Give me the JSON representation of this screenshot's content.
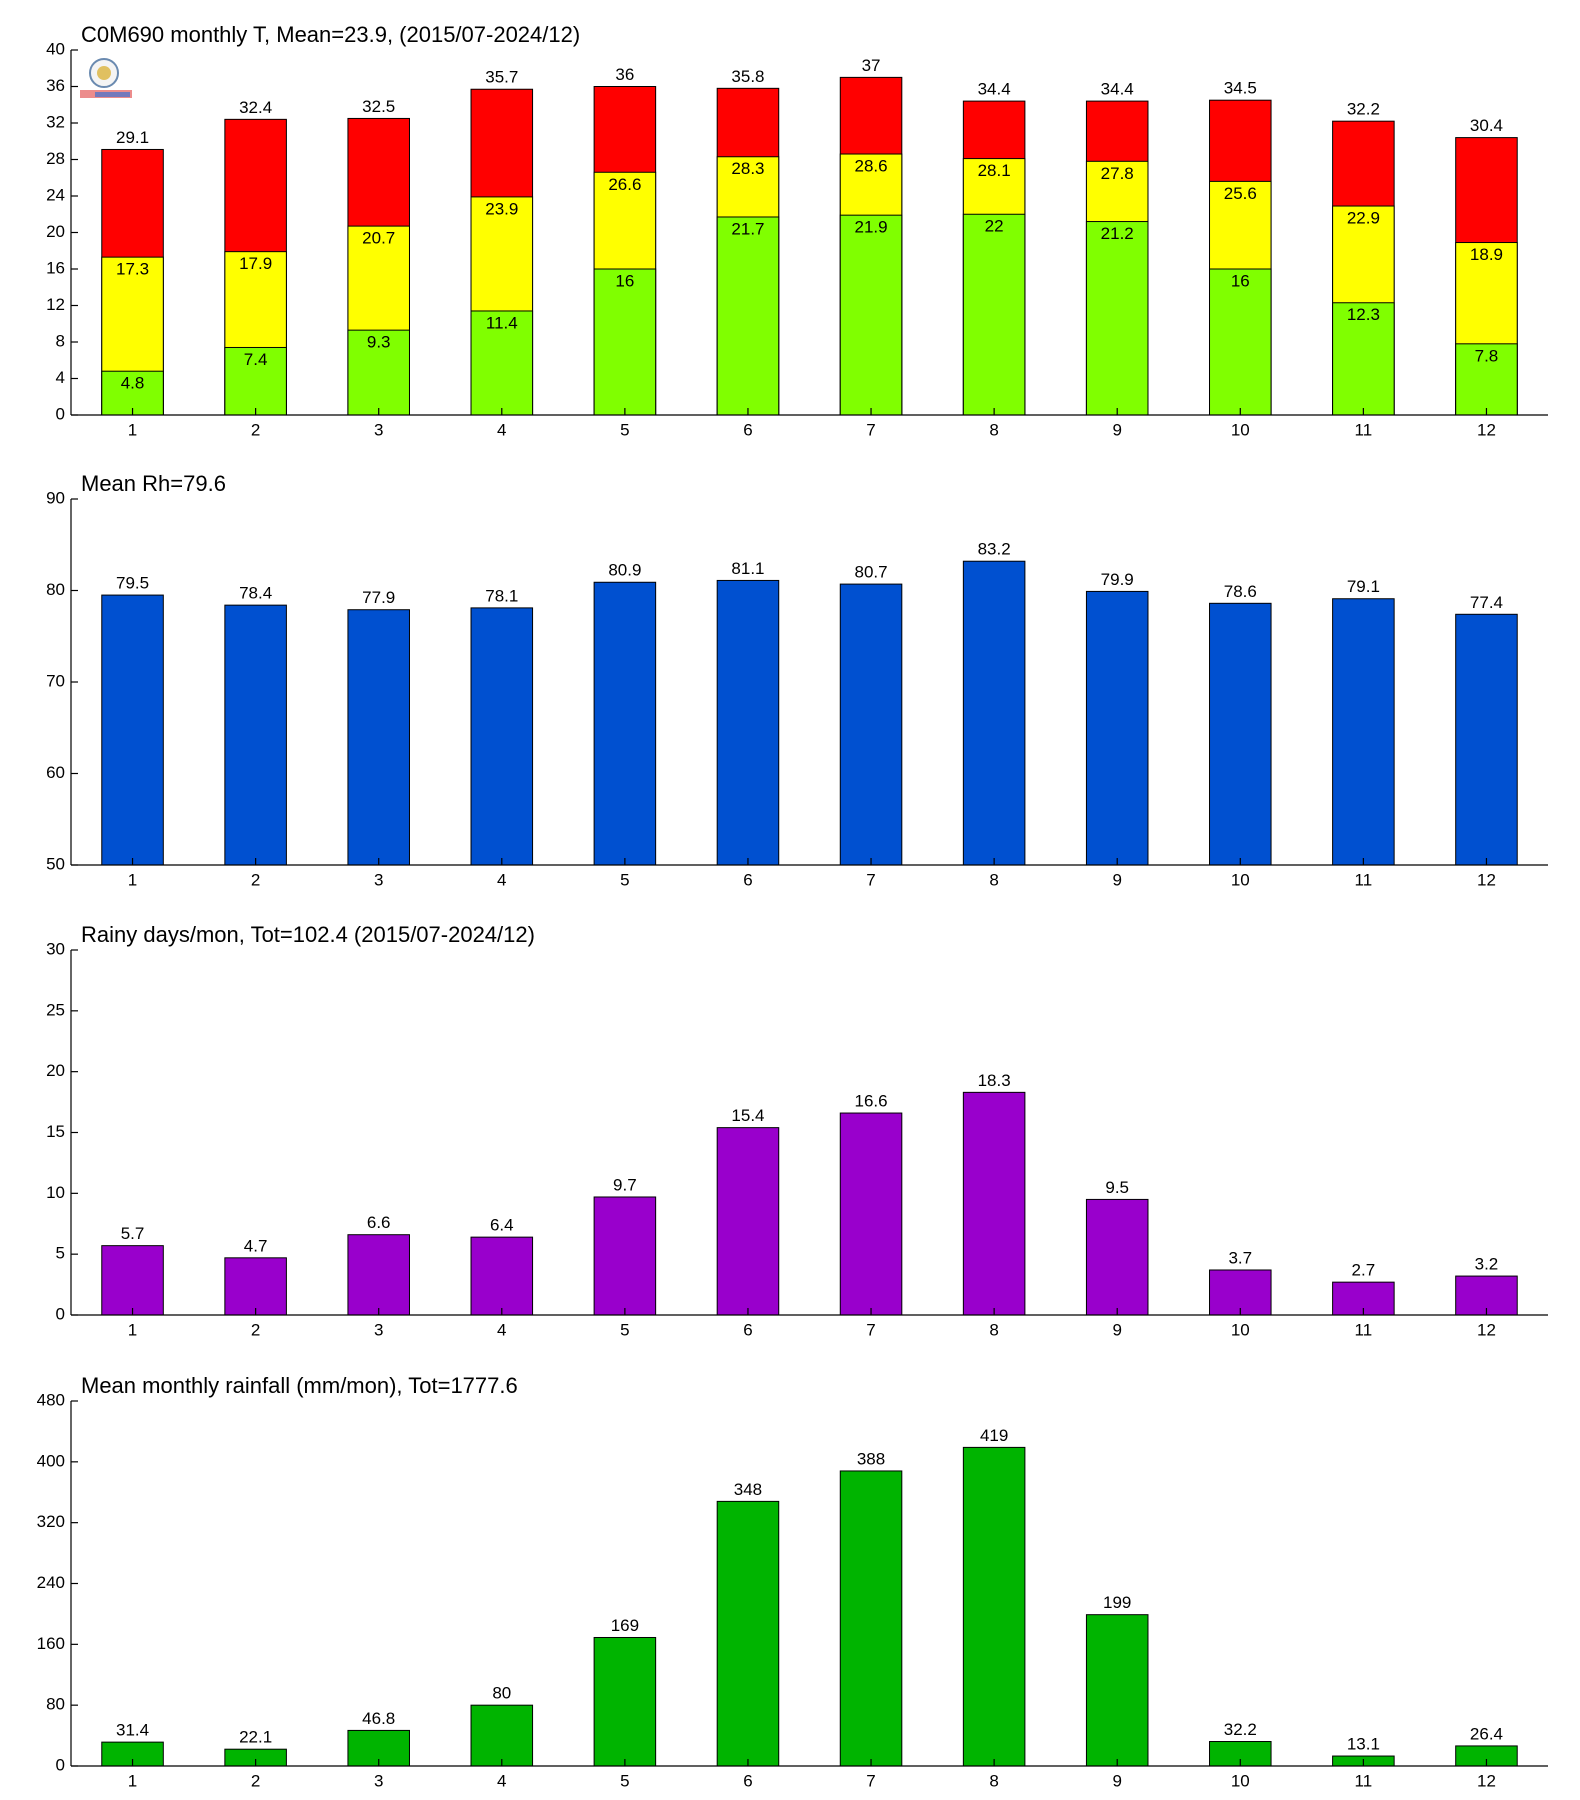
{
  "chart_data": [
    {
      "type": "bar",
      "barmode": "overlay",
      "title": "C0M690 monthly T, Mean=23.9, (2015/07-2024/12)",
      "categories": [
        "1",
        "2",
        "3",
        "4",
        "5",
        "6",
        "7",
        "8",
        "9",
        "10",
        "11",
        "12"
      ],
      "series": [
        {
          "color": "#ff0000",
          "values": [
            29.1,
            32.4,
            32.5,
            35.7,
            36,
            35.8,
            37,
            34.4,
            34.4,
            34.5,
            32.2,
            30.4
          ]
        },
        {
          "color": "#ffff00",
          "values": [
            17.3,
            17.9,
            20.7,
            23.9,
            26.6,
            28.3,
            28.6,
            28.1,
            27.8,
            25.6,
            22.9,
            18.9
          ]
        },
        {
          "color": "#80ff00",
          "values": [
            4.8,
            7.4,
            9.3,
            11.4,
            16,
            21.7,
            21.9,
            22,
            21.2,
            16,
            12.3,
            7.8
          ]
        }
      ],
      "ylim": [
        0,
        40
      ],
      "yticks": [
        0,
        4,
        8,
        12,
        16,
        20,
        24,
        28,
        32,
        36,
        40
      ]
    },
    {
      "type": "bar",
      "title": "Mean Rh=79.6",
      "categories": [
        "1",
        "2",
        "3",
        "4",
        "5",
        "6",
        "7",
        "8",
        "9",
        "10",
        "11",
        "12"
      ],
      "values": [
        79.5,
        78.4,
        77.9,
        78.1,
        80.9,
        81.1,
        80.7,
        83.2,
        79.9,
        78.6,
        79.1,
        77.4
      ],
      "color": "#0050d0",
      "ylim": [
        50,
        90
      ],
      "yticks": [
        50,
        60,
        70,
        80,
        90
      ]
    },
    {
      "type": "bar",
      "title": "Rainy days/mon, Tot=102.4 (2015/07-2024/12)",
      "categories": [
        "1",
        "2",
        "3",
        "4",
        "5",
        "6",
        "7",
        "8",
        "9",
        "10",
        "11",
        "12"
      ],
      "values": [
        5.7,
        4.7,
        6.6,
        6.4,
        9.7,
        15.4,
        16.6,
        18.3,
        9.5,
        3.7,
        2.7,
        3.2
      ],
      "color": "#9900cc",
      "ylim": [
        0,
        30
      ],
      "yticks": [
        0,
        5,
        10,
        15,
        20,
        25,
        30
      ]
    },
    {
      "type": "bar",
      "title": "Mean monthly rainfall (mm/mon), Tot=1777.6",
      "categories": [
        "1",
        "2",
        "3",
        "4",
        "5",
        "6",
        "7",
        "8",
        "9",
        "10",
        "11",
        "12"
      ],
      "values": [
        31.4,
        22.1,
        46.8,
        80,
        169,
        348,
        388,
        419,
        199,
        32.2,
        13.1,
        26.4
      ],
      "color": "#00b400",
      "ylim": [
        0,
        480
      ],
      "yticks": [
        0,
        80,
        160,
        240,
        320,
        400,
        480
      ]
    }
  ]
}
